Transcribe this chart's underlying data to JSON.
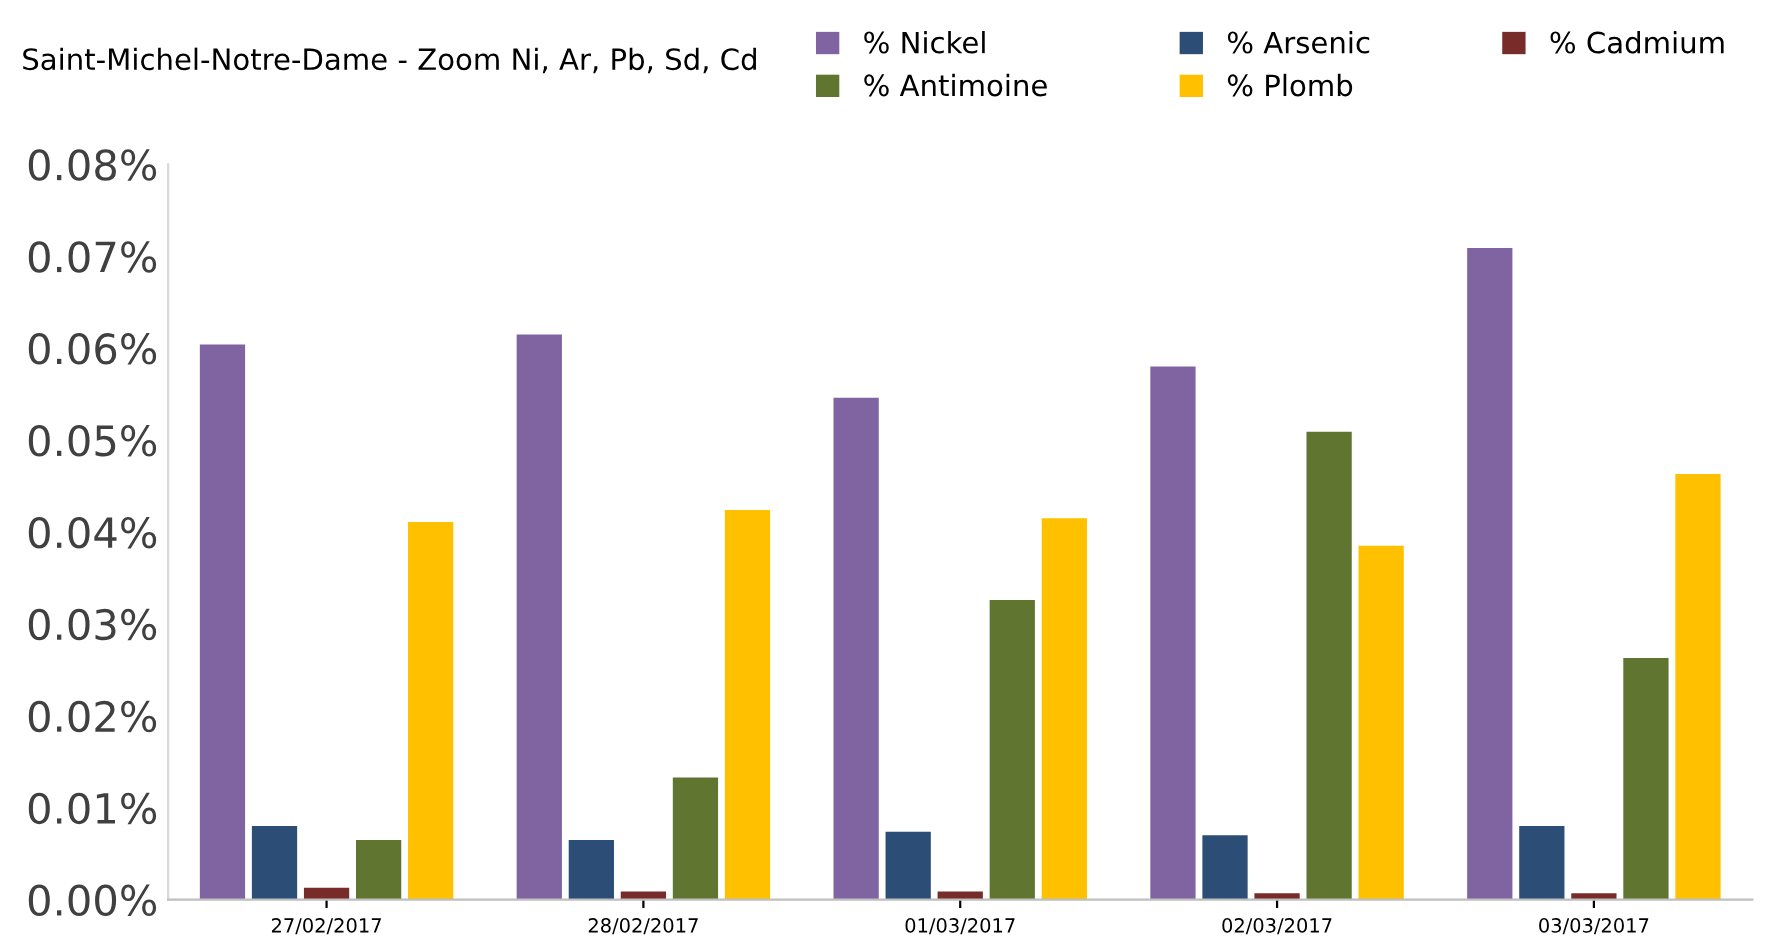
{
  "chart_data": {
    "type": "bar",
    "title": "Saint-Michel-Notre-Dame - Zoom Ni, Ar, Pb, Sd, Cd",
    "categories": [
      "27/02/2017",
      "28/02/2017",
      "01/03/2017",
      "02/03/2017",
      "03/03/2017"
    ],
    "series": [
      {
        "name": "% Nickel",
        "color": "#8064a2",
        "values": [
          0.0604,
          0.0615,
          0.0546,
          0.058,
          0.0709
        ]
      },
      {
        "name": "% Arsenic",
        "color": "#2c4d75",
        "values": [
          0.008,
          0.0065,
          0.0074,
          0.007,
          0.008
        ]
      },
      {
        "name": "% Cadmium",
        "color": "#772c2a",
        "values": [
          0.0013,
          0.0009,
          0.0009,
          0.0007,
          0.0007
        ]
      },
      {
        "name": "% Antimoine",
        "color": "#5f7530",
        "values": [
          0.0065,
          0.0133,
          0.0326,
          0.0509,
          0.0263
        ]
      },
      {
        "name": "% Plomb",
        "color": "#ffc000",
        "values": [
          0.0411,
          0.0424,
          0.0415,
          0.0385,
          0.0463
        ]
      }
    ],
    "ylim": [
      0,
      0.08
    ],
    "yticks": [
      {
        "value": 0,
        "label": "0.00%"
      },
      {
        "value": 0.01,
        "label": "0.01%"
      },
      {
        "value": 0.02,
        "label": "0.02%"
      },
      {
        "value": 0.03,
        "label": "0.03%"
      },
      {
        "value": 0.04,
        "label": "0.04%"
      },
      {
        "value": 0.05,
        "label": "0.05%"
      },
      {
        "value": 0.06,
        "label": "0.06%"
      },
      {
        "value": 0.07,
        "label": "0.07%"
      },
      {
        "value": 0.08,
        "label": "0.08%"
      }
    ],
    "legend": "top right",
    "grid": false
  }
}
